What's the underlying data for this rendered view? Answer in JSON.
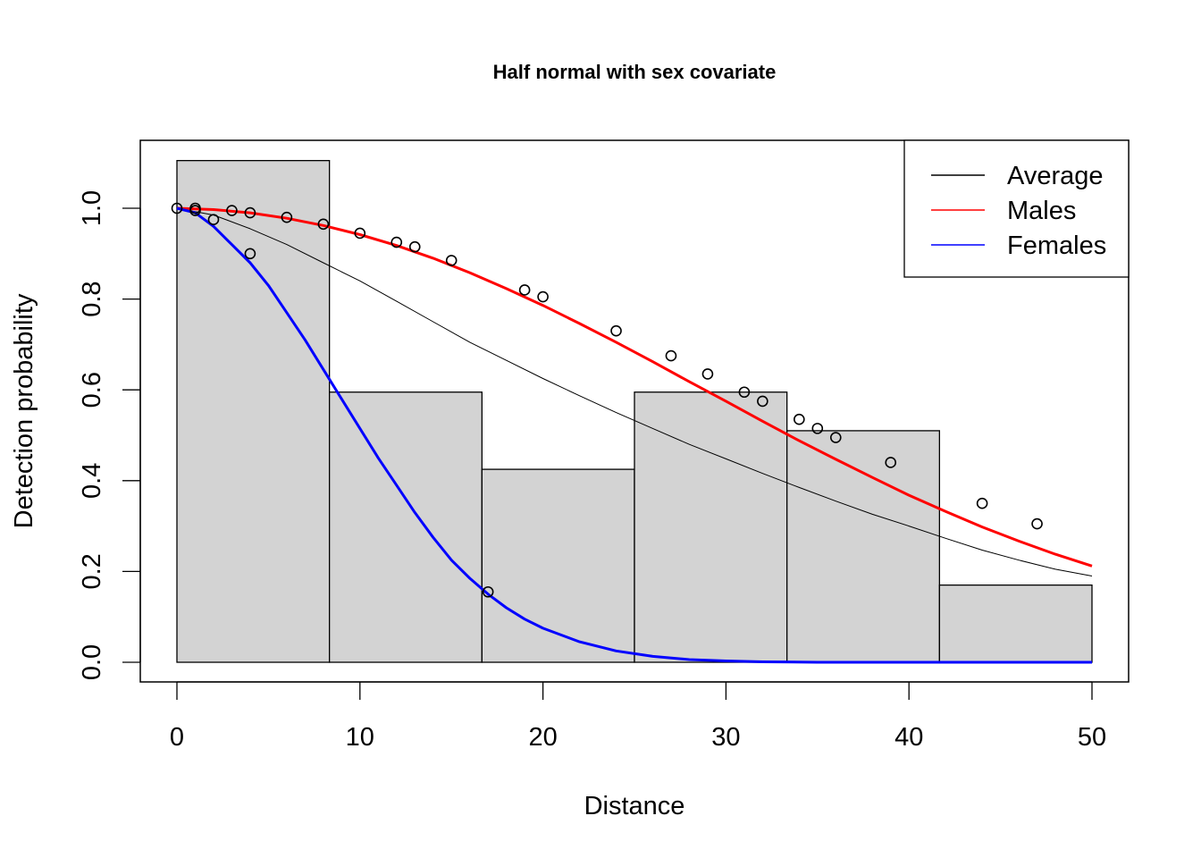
{
  "chart_data": {
    "type": "histogram_with_lines",
    "title": "Half normal with sex covariate",
    "xlabel": "Distance",
    "ylabel": "Detection probability",
    "xlim": [
      0,
      50
    ],
    "ylim": [
      0,
      1.1
    ],
    "x_ticks": [
      "0",
      "10",
      "20",
      "30",
      "40",
      "50"
    ],
    "x_tick_values": [
      0,
      10,
      20,
      30,
      40,
      50
    ],
    "y_ticks": [
      "0.0",
      "0.2",
      "0.4",
      "0.6",
      "0.8",
      "1.0"
    ],
    "y_tick_values": [
      0,
      0.2,
      0.4,
      0.6,
      0.8,
      1.0
    ],
    "histogram": {
      "color": "#d3d3d3",
      "bin_edges": [
        0,
        8.333,
        16.667,
        25,
        33.333,
        41.667,
        50
      ],
      "heights": [
        1.105,
        0.595,
        0.425,
        0.595,
        0.51,
        0.17
      ]
    },
    "series": [
      {
        "name": "Average",
        "color": "#000000",
        "line_width": 1,
        "x": [
          0,
          2,
          4,
          6,
          8,
          10,
          12,
          14,
          16,
          18,
          20,
          22,
          24,
          26,
          28,
          30,
          32,
          34,
          36,
          38,
          40,
          42,
          44,
          46,
          48,
          50
        ],
        "y": [
          1.0,
          0.985,
          0.955,
          0.92,
          0.88,
          0.84,
          0.795,
          0.75,
          0.705,
          0.665,
          0.625,
          0.587,
          0.55,
          0.515,
          0.48,
          0.448,
          0.416,
          0.385,
          0.355,
          0.326,
          0.3,
          0.273,
          0.247,
          0.225,
          0.205,
          0.19
        ]
      },
      {
        "name": "Males",
        "color": "#ff0000",
        "line_width": 3,
        "x": [
          0,
          2,
          4,
          6,
          8,
          10,
          12,
          14,
          16,
          18,
          20,
          22,
          24,
          26,
          28,
          30,
          32,
          34,
          36,
          38,
          40,
          42,
          44,
          46,
          48,
          50
        ],
        "y": [
          1.0,
          0.997,
          0.99,
          0.978,
          0.962,
          0.942,
          0.918,
          0.89,
          0.858,
          0.823,
          0.786,
          0.746,
          0.705,
          0.662,
          0.618,
          0.575,
          0.531,
          0.488,
          0.447,
          0.407,
          0.368,
          0.332,
          0.298,
          0.267,
          0.238,
          0.212
        ]
      },
      {
        "name": "Females",
        "color": "#0000ff",
        "line_width": 3,
        "x": [
          0,
          1,
          2,
          3,
          4,
          5,
          6,
          7,
          8,
          9,
          10,
          11,
          12,
          13,
          14,
          15,
          16,
          17,
          18,
          19,
          20,
          22,
          24,
          26,
          28,
          30,
          32,
          35,
          40,
          45,
          50
        ],
        "y": [
          1.0,
          0.99,
          0.96,
          0.92,
          0.88,
          0.83,
          0.77,
          0.71,
          0.645,
          0.58,
          0.515,
          0.45,
          0.39,
          0.33,
          0.275,
          0.225,
          0.185,
          0.15,
          0.12,
          0.095,
          0.075,
          0.045,
          0.025,
          0.013,
          0.006,
          0.003,
          0.001,
          0.0,
          0.0,
          0.0,
          0.0
        ]
      }
    ],
    "points": {
      "x": [
        0,
        1,
        1,
        2,
        3,
        4,
        4,
        6,
        8,
        10,
        12,
        13,
        15,
        17,
        19,
        20,
        24,
        27,
        29,
        31,
        32,
        34,
        35,
        36,
        39,
        44,
        47
      ],
      "y": [
        1.0,
        1.0,
        0.995,
        0.975,
        0.995,
        0.99,
        0.9,
        0.98,
        0.965,
        0.945,
        0.925,
        0.915,
        0.885,
        0.155,
        0.82,
        0.805,
        0.73,
        0.675,
        0.635,
        0.595,
        0.575,
        0.535,
        0.515,
        0.495,
        0.44,
        0.35,
        0.305
      ]
    },
    "legend": {
      "placement": "top-right",
      "entries": [
        "Average",
        "Males",
        "Females"
      ]
    }
  }
}
